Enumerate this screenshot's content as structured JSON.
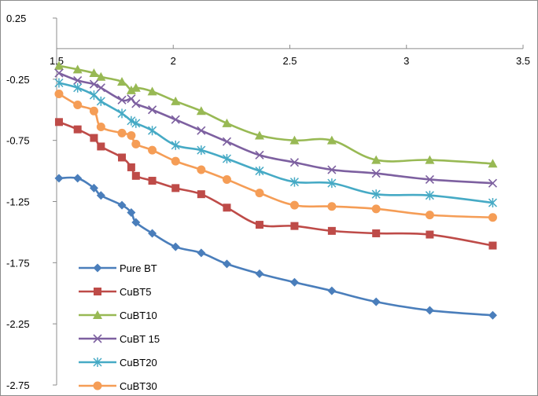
{
  "chart_data": {
    "type": "line",
    "title": "",
    "xlabel": "",
    "ylabel": "",
    "xlim": [
      1.5,
      3.5
    ],
    "ylim": [
      -2.75,
      0.25
    ],
    "x_ticks": [
      1.5,
      2,
      2.5,
      3,
      3.5
    ],
    "x_tick_labels": [
      "1.5",
      "2",
      "2.5",
      "3",
      "3.5"
    ],
    "y_ticks": [
      0.25,
      -0.25,
      -0.75,
      -1.25,
      -1.75,
      -2.25,
      -2.75
    ],
    "y_tick_labels": [
      "0.25",
      "-0.25",
      "-0.75",
      "-1.25",
      "-1.75",
      "-2.25",
      "-2.75"
    ],
    "x_axis_crosses_y_at": 0,
    "grid": false,
    "legend_position": "lower-left",
    "x": [
      1.51,
      1.59,
      1.66,
      1.69,
      1.78,
      1.82,
      1.84,
      1.91,
      2.01,
      2.12,
      2.23,
      2.37,
      2.52,
      2.68,
      2.87,
      3.1,
      3.37
    ],
    "series": [
      {
        "name": "Pure BT",
        "color": "#4a7ebb",
        "marker": "diamond",
        "values": [
          -1.06,
          -1.06,
          -1.14,
          -1.2,
          -1.28,
          -1.34,
          -1.42,
          -1.51,
          -1.62,
          -1.67,
          -1.76,
          -1.84,
          -1.91,
          -1.98,
          -2.07,
          -2.14,
          -2.18
        ]
      },
      {
        "name": "CuBT5",
        "color": "#be4b48",
        "marker": "square",
        "values": [
          -0.6,
          -0.66,
          -0.73,
          -0.8,
          -0.89,
          -0.97,
          -1.04,
          -1.08,
          -1.14,
          -1.19,
          -1.3,
          -1.44,
          -1.45,
          -1.49,
          -1.51,
          -1.52,
          -1.61
        ]
      },
      {
        "name": "CuBT10",
        "color": "#98b954",
        "marker": "triangle",
        "values": [
          -0.14,
          -0.17,
          -0.2,
          -0.23,
          -0.27,
          -0.34,
          -0.32,
          -0.35,
          -0.43,
          -0.51,
          -0.61,
          -0.71,
          -0.75,
          -0.75,
          -0.91,
          -0.91,
          -0.94
        ]
      },
      {
        "name": "CuBT 15",
        "color": "#7d60a0",
        "marker": "x",
        "values": [
          -0.2,
          -0.26,
          -0.29,
          -0.32,
          -0.42,
          -0.41,
          -0.45,
          -0.5,
          -0.58,
          -0.67,
          -0.76,
          -0.87,
          -0.93,
          -0.99,
          -1.02,
          -1.07,
          -1.1
        ]
      },
      {
        "name": "CuBT20",
        "color": "#46aac5",
        "marker": "asterisk",
        "values": [
          -0.28,
          -0.32,
          -0.38,
          -0.43,
          -0.53,
          -0.59,
          -0.61,
          -0.67,
          -0.79,
          -0.83,
          -0.9,
          -1.0,
          -1.09,
          -1.1,
          -1.19,
          -1.2,
          -1.26
        ]
      },
      {
        "name": "CuBT30",
        "color": "#f59d56",
        "marker": "circle",
        "values": [
          -0.37,
          -0.46,
          -0.51,
          -0.64,
          -0.69,
          -0.71,
          -0.78,
          -0.83,
          -0.92,
          -0.99,
          -1.07,
          -1.18,
          -1.28,
          -1.29,
          -1.31,
          -1.36,
          -1.38
        ]
      }
    ]
  }
}
